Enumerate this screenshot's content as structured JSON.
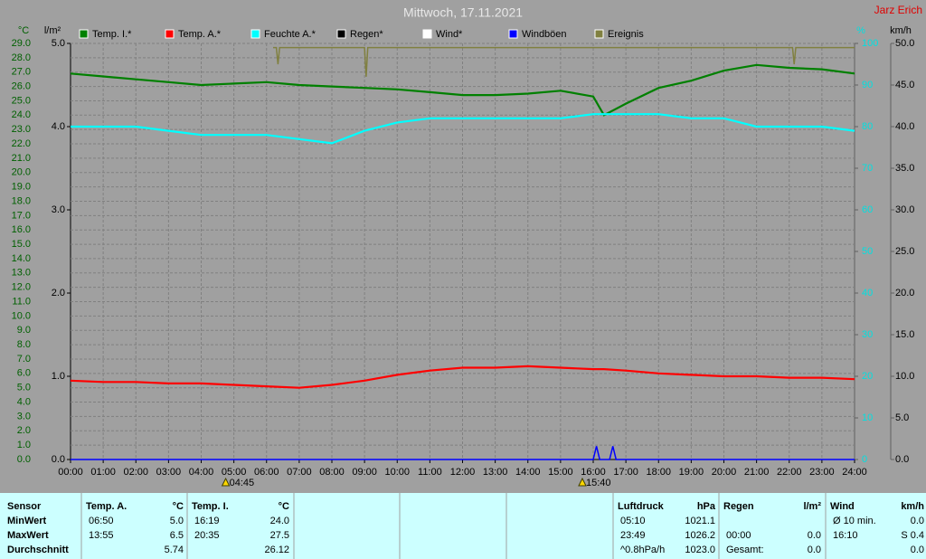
{
  "title": "Mittwoch, 17.11.2021",
  "author": "Jarz Erich",
  "chart_data": {
    "type": "line",
    "y_unit": "°C",
    "y2_unit": "l/m²",
    "y3_unit": "%",
    "y4_unit": "km/h",
    "x": [
      0,
      1,
      2,
      3,
      4,
      5,
      6,
      7,
      8,
      9,
      10,
      11,
      12,
      13,
      14,
      15,
      16,
      16.33,
      17,
      18,
      19,
      20,
      21,
      22,
      23,
      24
    ],
    "xlim": [
      0,
      24
    ],
    "xticks": [
      {
        "value": 0,
        "label": "00:00"
      },
      {
        "value": 1,
        "label": "01:00"
      },
      {
        "value": 2,
        "label": "02:00"
      },
      {
        "value": 3,
        "label": "03:00"
      },
      {
        "value": 4,
        "label": "04:00"
      },
      {
        "value": 5,
        "label": "05:00"
      },
      {
        "value": 6,
        "label": "06:00"
      },
      {
        "value": 7,
        "label": "07:00"
      },
      {
        "value": 8,
        "label": "08:00"
      },
      {
        "value": 9,
        "label": "09:00"
      },
      {
        "value": 10,
        "label": "10:00"
      },
      {
        "value": 11,
        "label": "11:00"
      },
      {
        "value": 12,
        "label": "12:00"
      },
      {
        "value": 13,
        "label": "13:00"
      },
      {
        "value": 14,
        "label": "14:00"
      },
      {
        "value": 15,
        "label": "15:00"
      },
      {
        "value": 16,
        "label": "16:00"
      },
      {
        "value": 17,
        "label": "17:00"
      },
      {
        "value": 18,
        "label": "18:00"
      },
      {
        "value": 19,
        "label": "19:00"
      },
      {
        "value": 20,
        "label": "20:00"
      },
      {
        "value": 21,
        "label": "21:00"
      },
      {
        "value": 22,
        "label": "22:00"
      },
      {
        "value": 23,
        "label": "23:00"
      },
      {
        "value": 24,
        "label": "24:00"
      }
    ],
    "ylim": [
      0,
      29
    ],
    "yticks": [
      {
        "value": 0,
        "label": "0.0"
      },
      {
        "value": 1,
        "label": "1.0"
      },
      {
        "value": 2,
        "label": "2.0"
      },
      {
        "value": 3,
        "label": "3.0"
      },
      {
        "value": 4,
        "label": "4.0"
      },
      {
        "value": 5,
        "label": "5.0"
      },
      {
        "value": 6,
        "label": "6.0"
      },
      {
        "value": 7,
        "label": "7.0"
      },
      {
        "value": 8,
        "label": "8.0"
      },
      {
        "value": 9,
        "label": "9.0"
      },
      {
        "value": 10,
        "label": "10.0"
      },
      {
        "value": 11,
        "label": "11.0"
      },
      {
        "value": 12,
        "label": "12.0"
      },
      {
        "value": 13,
        "label": "13.0"
      },
      {
        "value": 14,
        "label": "14.0"
      },
      {
        "value": 15,
        "label": "15.0"
      },
      {
        "value": 16,
        "label": "16.0"
      },
      {
        "value": 17,
        "label": "17.0"
      },
      {
        "value": 18,
        "label": "18.0"
      },
      {
        "value": 19,
        "label": "19.0"
      },
      {
        "value": 20,
        "label": "20.0"
      },
      {
        "value": 21,
        "label": "21.0"
      },
      {
        "value": 22,
        "label": "22.0"
      },
      {
        "value": 23,
        "label": "23.0"
      },
      {
        "value": 24,
        "label": "24.0"
      },
      {
        "value": 25,
        "label": "25.0"
      },
      {
        "value": 26,
        "label": "26.0"
      },
      {
        "value": 27,
        "label": "27.0"
      },
      {
        "value": 28,
        "label": "28.0"
      },
      {
        "value": 29,
        "label": "29.0"
      }
    ],
    "y2lim": [
      0,
      5
    ],
    "y2ticks": [
      {
        "value": 0,
        "label": "0.0"
      },
      {
        "value": 1,
        "label": "1.0"
      },
      {
        "value": 2,
        "label": "2.0"
      },
      {
        "value": 3,
        "label": "3.0"
      },
      {
        "value": 4,
        "label": "4.0"
      },
      {
        "value": 5,
        "label": "5.0"
      }
    ],
    "y3lim": [
      0,
      100
    ],
    "y3ticks": [
      0,
      10,
      20,
      30,
      40,
      50,
      60,
      70,
      80,
      90,
      100
    ],
    "y4lim": [
      0,
      50
    ],
    "y4ticks": [
      {
        "value": 0,
        "label": "0.0"
      },
      {
        "value": 5,
        "label": "5.0"
      },
      {
        "value": 10,
        "label": "10.0"
      },
      {
        "value": 15,
        "label": "15.0"
      },
      {
        "value": 20,
        "label": "20.0"
      },
      {
        "value": 25,
        "label": "25.0"
      },
      {
        "value": 30,
        "label": "30.0"
      },
      {
        "value": 35,
        "label": "35.0"
      },
      {
        "value": 40,
        "label": "40.0"
      },
      {
        "value": 45,
        "label": "45.0"
      },
      {
        "value": 50,
        "label": "50.0"
      }
    ],
    "grid": true,
    "series": [
      {
        "name": "Temp. I.*",
        "color": "#008000",
        "axis": "y",
        "values": [
          26.9,
          26.7,
          26.5,
          26.3,
          26.1,
          26.2,
          26.3,
          26.1,
          26.0,
          25.9,
          25.8,
          25.6,
          25.4,
          25.4,
          25.5,
          25.7,
          25.3,
          24.0,
          24.8,
          25.9,
          26.4,
          27.1,
          27.5,
          27.3,
          27.2,
          26.9
        ]
      },
      {
        "name": "Temp. A.*",
        "color": "#ff0000",
        "axis": "y",
        "values": [
          5.5,
          5.4,
          5.4,
          5.3,
          5.3,
          5.2,
          5.1,
          5.0,
          5.2,
          5.5,
          5.9,
          6.2,
          6.4,
          6.4,
          6.5,
          6.4,
          6.3,
          6.3,
          6.2,
          6.0,
          5.9,
          5.8,
          5.8,
          5.7,
          5.7,
          5.6
        ]
      },
      {
        "name": "Feuchte A.*",
        "color": "#00ffff",
        "axis": "y3",
        "values": [
          80,
          80,
          80,
          79,
          78,
          78,
          78,
          77,
          76,
          79,
          81,
          82,
          82,
          82,
          82,
          82,
          83,
          83,
          83,
          83,
          82,
          82,
          80,
          80,
          80,
          79
        ]
      },
      {
        "name": "Regen*",
        "color": "#000000"
      },
      {
        "name": "Wind*",
        "color": "#ffffff"
      },
      {
        "name": "Windböen",
        "color": "#0000ff",
        "axis": "y4",
        "x": [
          0,
          16.0,
          16.1,
          16.2,
          16.5,
          16.6,
          16.7,
          24
        ],
        "values": [
          0,
          0,
          1.6,
          0,
          0,
          1.6,
          0,
          0
        ]
      },
      {
        "name": "Ereignis",
        "color": "#808040",
        "axis": "y3",
        "x": [
          6.2,
          6.3,
          6.35,
          6.4,
          9.0,
          9.05,
          9.1,
          22.1,
          22.15,
          22.2,
          24
        ],
        "values": [
          99,
          99,
          95,
          99,
          99,
          92,
          99,
          99,
          95,
          99,
          99
        ]
      }
    ],
    "sun_events": [
      {
        "label": "04:45",
        "x": 4.75
      },
      {
        "label": "15:40",
        "x": 15.667
      }
    ]
  },
  "table": {
    "row_labels": [
      "Sensor",
      "MinWert",
      "MaxWert",
      "Durchschnitt"
    ],
    "sections": [
      {
        "header": "Temp. A.",
        "unit": "°C",
        "rows": [
          [
            "06:50",
            "5.0"
          ],
          [
            "13:55",
            "6.5"
          ],
          [
            null,
            "5.74"
          ]
        ]
      },
      {
        "header": "Temp. I.",
        "unit": "°C",
        "rows": [
          [
            "16:19",
            "24.0"
          ],
          [
            "20:35",
            "27.5"
          ],
          [
            null,
            "26.12"
          ]
        ]
      },
      {
        "header": "Luftdruck",
        "unit": "hPa",
        "rows": [
          [
            "05:10",
            "1021.1"
          ],
          [
            "23:49",
            "1026.2"
          ],
          [
            "^0.8hPa/h",
            "1023.0"
          ]
        ]
      },
      {
        "header": "Regen",
        "unit": "l/m²",
        "rows": [
          [
            null,
            null
          ],
          [
            "00:00",
            "0.0"
          ],
          [
            "Gesamt:",
            "0.0"
          ]
        ]
      },
      {
        "header": "Wind",
        "unit": "km/h",
        "rows": [
          [
            "Ø 10 min.",
            "0.0"
          ],
          [
            "16:10",
            "S 0.4"
          ],
          [
            null,
            "0.0"
          ]
        ]
      }
    ]
  }
}
